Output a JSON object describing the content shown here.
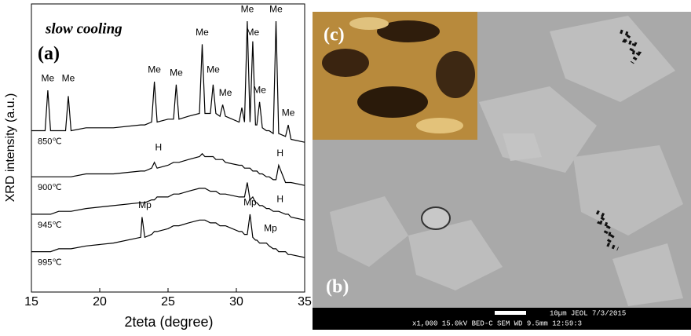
{
  "chart_data": {
    "type": "line",
    "title": "slow cooling",
    "panel_label": "(a)",
    "xlabel": "2teta (degree)",
    "ylabel": "XRD intensity (a.u.)",
    "xlim": [
      15,
      35
    ],
    "xticks": [
      15,
      20,
      25,
      30,
      35
    ],
    "ylim": [
      0,
      100
    ],
    "x": [
      15,
      16,
      16.2,
      16.4,
      17,
      17.5,
      17.7,
      17.9,
      19,
      21,
      23,
      23.1,
      23.3,
      23.8,
      24,
      24.2,
      25,
      25.4,
      25.6,
      25.8,
      26.5,
      27.3,
      27.5,
      27.7,
      28.1,
      28.3,
      28.5,
      28.8,
      29,
      29.2,
      30.2,
      30.4,
      30.6,
      30.8,
      31,
      31.2,
      31.4,
      31.5,
      31.7,
      31.9,
      32.2,
      32.4,
      32.7,
      32.9,
      33.1,
      33.6,
      33.8,
      34,
      35
    ],
    "series": [
      {
        "name": "850℃",
        "color": "#000000",
        "values": [
          56,
          56,
          70,
          56,
          56,
          56,
          68,
          56,
          57,
          57,
          58,
          58,
          58,
          59,
          73,
          59,
          60,
          60,
          72,
          60,
          61,
          62,
          86,
          62,
          62,
          72,
          62,
          61,
          65,
          61,
          59,
          64,
          59,
          94,
          59,
          87,
          58,
          58,
          66,
          57,
          56,
          56,
          55,
          94,
          55,
          54,
          58,
          53,
          52
        ]
      },
      {
        "name": "900℃",
        "color": "#000000",
        "values": [
          40,
          40,
          40,
          40,
          40,
          40,
          40,
          40,
          41,
          41,
          42,
          42,
          42,
          43,
          45,
          43,
          44,
          45,
          45,
          45,
          46,
          47,
          48,
          47,
          47,
          47,
          46,
          46,
          46,
          45,
          44,
          44,
          43,
          43,
          43,
          42,
          42,
          42,
          41,
          41,
          40,
          40,
          39,
          39,
          44,
          38,
          38,
          38,
          37
        ]
      },
      {
        "name": "945℃",
        "color": "#000000",
        "values": [
          27,
          27,
          27,
          27,
          28,
          28,
          28,
          28,
          29,
          30,
          31,
          31,
          31,
          32,
          32,
          33,
          33,
          34,
          34,
          34,
          35,
          36,
          36,
          36,
          35,
          35,
          35,
          34,
          34,
          34,
          33,
          33,
          33,
          38,
          32,
          33,
          31,
          31,
          30,
          30,
          29,
          29,
          28,
          28,
          28,
          27,
          27,
          26,
          25
        ]
      },
      {
        "name": "995℃",
        "color": "#000000",
        "values": [
          14,
          14,
          14,
          14,
          15,
          15,
          15,
          15,
          16,
          17,
          19,
          26,
          19,
          20,
          21,
          21,
          22,
          23,
          23,
          23,
          24,
          25,
          25,
          25,
          24,
          24,
          24,
          23,
          23,
          23,
          21,
          21,
          20,
          20,
          27,
          19,
          18,
          18,
          17,
          17,
          17,
          16,
          15,
          15,
          14,
          14,
          13,
          13,
          12
        ]
      }
    ],
    "annotations": [
      {
        "text": "Me",
        "x": 16.2,
        "y": 74
      },
      {
        "text": "Me",
        "x": 17.7,
        "y": 74
      },
      {
        "text": "Me",
        "x": 24.0,
        "y": 77
      },
      {
        "text": "Me",
        "x": 25.6,
        "y": 76
      },
      {
        "text": "Me",
        "x": 27.5,
        "y": 90
      },
      {
        "text": "Me",
        "x": 28.3,
        "y": 77
      },
      {
        "text": "Me",
        "x": 29.2,
        "y": 69
      },
      {
        "text": "Me",
        "x": 30.8,
        "y": 98
      },
      {
        "text": "Me",
        "x": 31.2,
        "y": 90
      },
      {
        "text": "Me",
        "x": 31.7,
        "y": 70
      },
      {
        "text": "Me",
        "x": 32.9,
        "y": 98
      },
      {
        "text": "Me",
        "x": 33.8,
        "y": 62
      },
      {
        "text": "H",
        "x": 24.3,
        "y": 50
      },
      {
        "text": "H",
        "x": 33.2,
        "y": 48
      },
      {
        "text": "H",
        "x": 33.2,
        "y": 32
      },
      {
        "text": "Mp",
        "x": 23.3,
        "y": 30
      },
      {
        "text": "Mp",
        "x": 31.0,
        "y": 31
      },
      {
        "text": "Mp",
        "x": 32.5,
        "y": 22
      }
    ]
  },
  "images": {
    "inset_label": "(c)",
    "main_label": "(b)",
    "scale_text": "10µm JEOL   7/3/2015",
    "info_text": "x1,000    15.0kV BED-C   SEM   WD 9.5mm  12:59:3"
  }
}
